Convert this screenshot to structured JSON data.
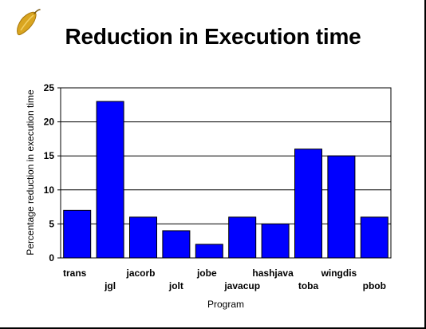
{
  "slide": {
    "title": "Reduction in Execution time",
    "logo_icon": "bean-pod-icon"
  },
  "chart_data": {
    "type": "bar",
    "title": "",
    "xlabel": "Program",
    "ylabel": "Percentage reduction in execution time",
    "categories": [
      "trans",
      "jgl",
      "jacorb",
      "jolt",
      "jobe",
      "javacup",
      "hashjava",
      "toba",
      "wingdis",
      "pbob"
    ],
    "values": [
      7,
      23,
      6,
      4,
      2,
      6,
      5,
      16,
      15,
      6
    ],
    "yticks": [
      "0",
      "5",
      "10",
      "15",
      "20",
      "25"
    ],
    "ylim": [
      0,
      25
    ],
    "grid": true,
    "legend": "none",
    "bar_color": "#0000ff"
  }
}
